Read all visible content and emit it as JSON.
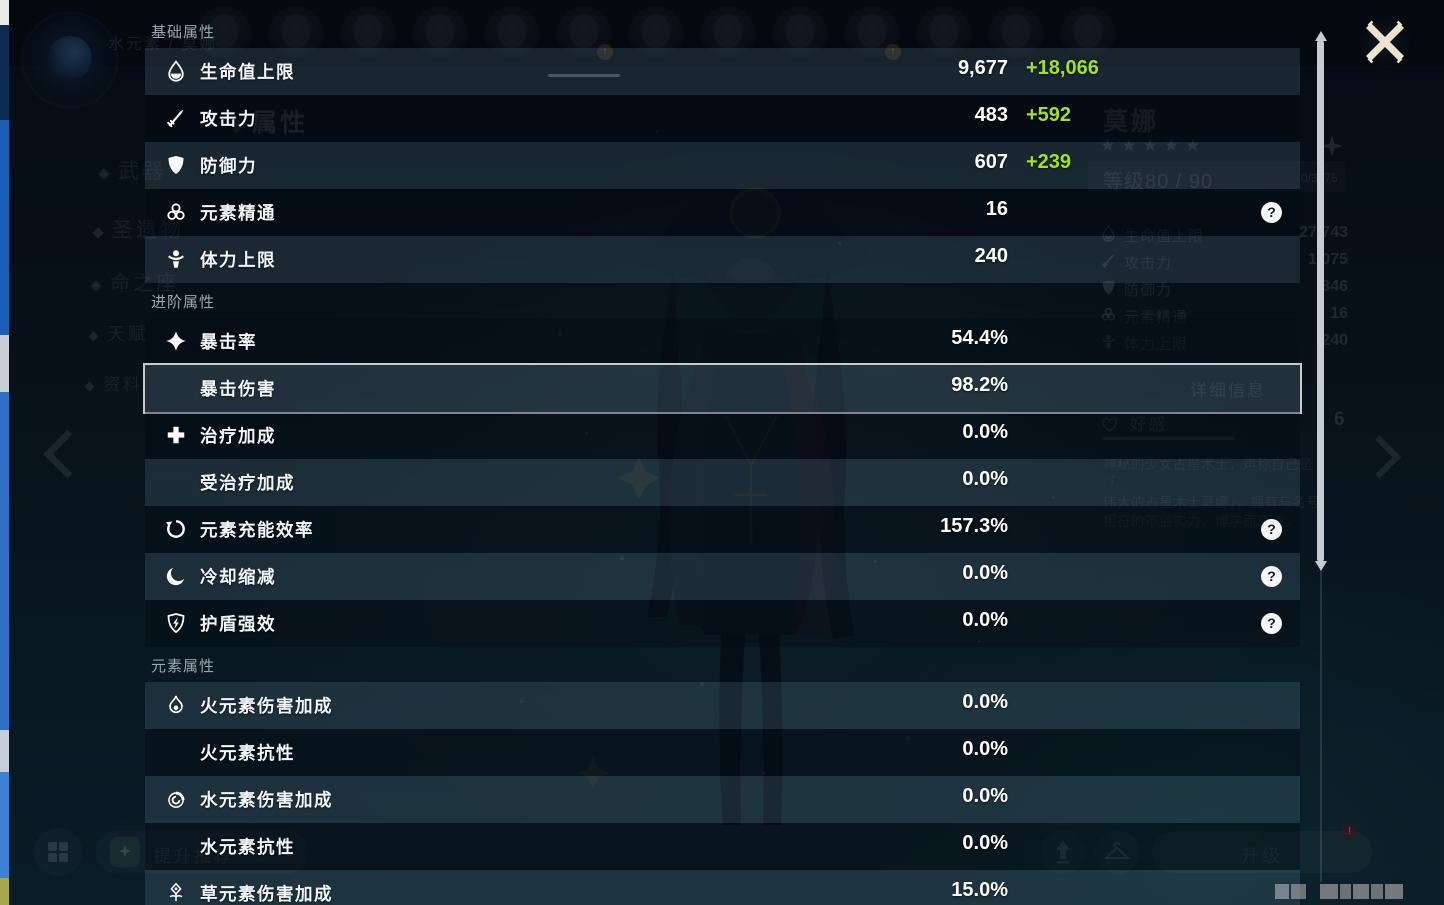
{
  "colors": {
    "bonus_green": "#9fe41f",
    "close_x": "#ece4d0",
    "panel_row_light": "rgba(151,196,226,0.14)",
    "panel_row_dark": "rgba(2,10,18,0.35)"
  },
  "overlay": {
    "help_glyph": "?",
    "sections": [
      {
        "title": "基础属性",
        "rows": [
          {
            "icon": "hp",
            "label": "生命值上限",
            "value": "9,677",
            "bonus": "+18,066"
          },
          {
            "icon": "atk",
            "label": "攻击力",
            "value": "483",
            "bonus": "+592"
          },
          {
            "icon": "def",
            "label": "防御力",
            "value": "607",
            "bonus": "+239"
          },
          {
            "icon": "em",
            "label": "元素精通",
            "value": "16",
            "help": true
          },
          {
            "icon": "stamina",
            "label": "体力上限",
            "value": "240"
          }
        ]
      },
      {
        "title": "进阶属性",
        "rows": [
          {
            "icon": "crit-rate",
            "label": "暴击率",
            "value": "54.4%"
          },
          {
            "label": "暴击伤害",
            "value": "98.2%",
            "selected": true
          },
          {
            "icon": "healing-bonus",
            "label": "治疗加成",
            "value": "0.0%"
          },
          {
            "label": "受治疗加成",
            "value": "0.0%"
          },
          {
            "icon": "energy-recharge",
            "label": "元素充能效率",
            "value": "157.3%",
            "help": true
          },
          {
            "icon": "cooldown-reduction",
            "label": "冷却缩减",
            "value": "0.0%",
            "help": true
          },
          {
            "icon": "shield-strength",
            "label": "护盾强效",
            "value": "0.0%",
            "help": true
          }
        ]
      },
      {
        "title": "元素属性",
        "rows": [
          {
            "icon": "pyro",
            "label": "火元素伤害加成",
            "value": "0.0%"
          },
          {
            "label": "火元素抗性",
            "value": "0.0%"
          },
          {
            "icon": "hydro",
            "label": "水元素伤害加成",
            "value": "0.0%"
          },
          {
            "label": "水元素抗性",
            "value": "0.0%"
          },
          {
            "icon": "dendro",
            "label": "草元素伤害加成",
            "value": "15.0%"
          }
        ]
      }
    ]
  },
  "background": {
    "element_label": "水元素 / 莫娜",
    "sidebar": {
      "items": [
        "属性",
        "武器",
        "圣遗物",
        "命之座",
        "天赋",
        "资料"
      ]
    },
    "character": {
      "name": "莫娜",
      "stars": "★★★★★",
      "level": "等级80 / 90",
      "exp": "0/3175",
      "stats": [
        {
          "icon": "hp",
          "label": "生命值上限",
          "value": "27,743"
        },
        {
          "icon": "atk",
          "label": "攻击力",
          "value": "1,075"
        },
        {
          "icon": "def",
          "label": "防御力",
          "value": "846"
        },
        {
          "icon": "em",
          "label": "元素精通",
          "value": "16"
        },
        {
          "icon": "stamina",
          "label": "体力上限",
          "value": "240"
        }
      ],
      "detail_button": "详细信息",
      "friendship_label": "好感",
      "friendship_level": "6",
      "description_lines": [
        "神秘的少女占星术士，声称自己是「",
        "伟大的占星术士莫娜」，拥有与名号",
        "相符的不俗实力，博学而高傲。"
      ]
    },
    "bottom": {
      "boost_label": "提升推荐",
      "levelup_label": "升级",
      "badge": "!"
    }
  }
}
